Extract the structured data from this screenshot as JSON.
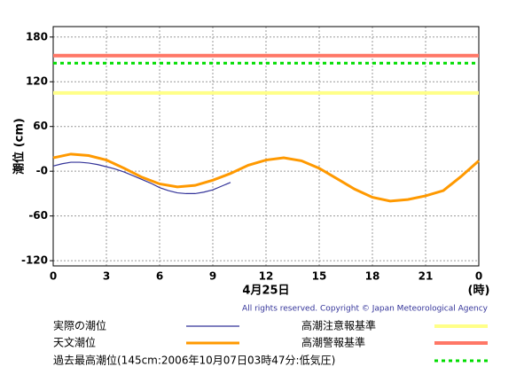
{
  "chart_data": {
    "type": "line",
    "y_label": "潮位 (cm)",
    "x_label": "4月25日",
    "x_unit": "(時)",
    "copyright": "All rights reserved. Copyright © Japan Meteorological Agency",
    "xlim": [
      0,
      24
    ],
    "xticks": [
      0,
      3,
      6,
      9,
      12,
      15,
      18,
      21,
      {
        "value": 24,
        "label": "0"
      }
    ],
    "ylim": [
      -127,
      194
    ],
    "yticks": [
      180,
      120,
      60,
      {
        "value": 0,
        "label": "-0"
      },
      -60,
      -120
    ],
    "grid": true,
    "series": [
      {
        "name": "実際の潮位",
        "color": "#333399",
        "x": [
          0,
          0.5,
          1,
          1.5,
          2,
          2.5,
          3,
          3.5,
          4,
          4.5,
          5,
          5.5,
          6,
          6.5,
          7,
          7.5,
          8,
          8.5,
          9,
          9.5,
          10
        ],
        "values": [
          7,
          10,
          12,
          12,
          11,
          9,
          6,
          3,
          -1,
          -6,
          -11,
          -16,
          -22,
          -26,
          -29,
          -30,
          -30,
          -28,
          -25,
          -20,
          -15
        ]
      },
      {
        "name": "天文潮位",
        "color": "#ff9900",
        "x": [
          0,
          1,
          2,
          3,
          4,
          5,
          6,
          7,
          8,
          9,
          10,
          11,
          12,
          13,
          14,
          15,
          16,
          17,
          18,
          19,
          20,
          21,
          22,
          23,
          24
        ],
        "values": [
          18,
          23,
          21,
          15,
          4,
          -8,
          -17,
          -21,
          -19,
          -12,
          -3,
          8,
          15,
          18,
          14,
          4,
          -10,
          -24,
          -35,
          -40,
          -38,
          -33,
          -26,
          -7,
          14
        ]
      }
    ],
    "reference_lines": [
      {
        "name": "高潮注意報基準",
        "color": "#ffff88",
        "value": 105,
        "dashed": false
      },
      {
        "name": "高潮警報基準",
        "color": "#ff7766",
        "value": 155,
        "dashed": false
      },
      {
        "name": "過去最高潮位(145cm:2006年10月07日03時47分:低気圧)",
        "color": "#00dd00",
        "value": 145,
        "dashed": true
      }
    ]
  }
}
